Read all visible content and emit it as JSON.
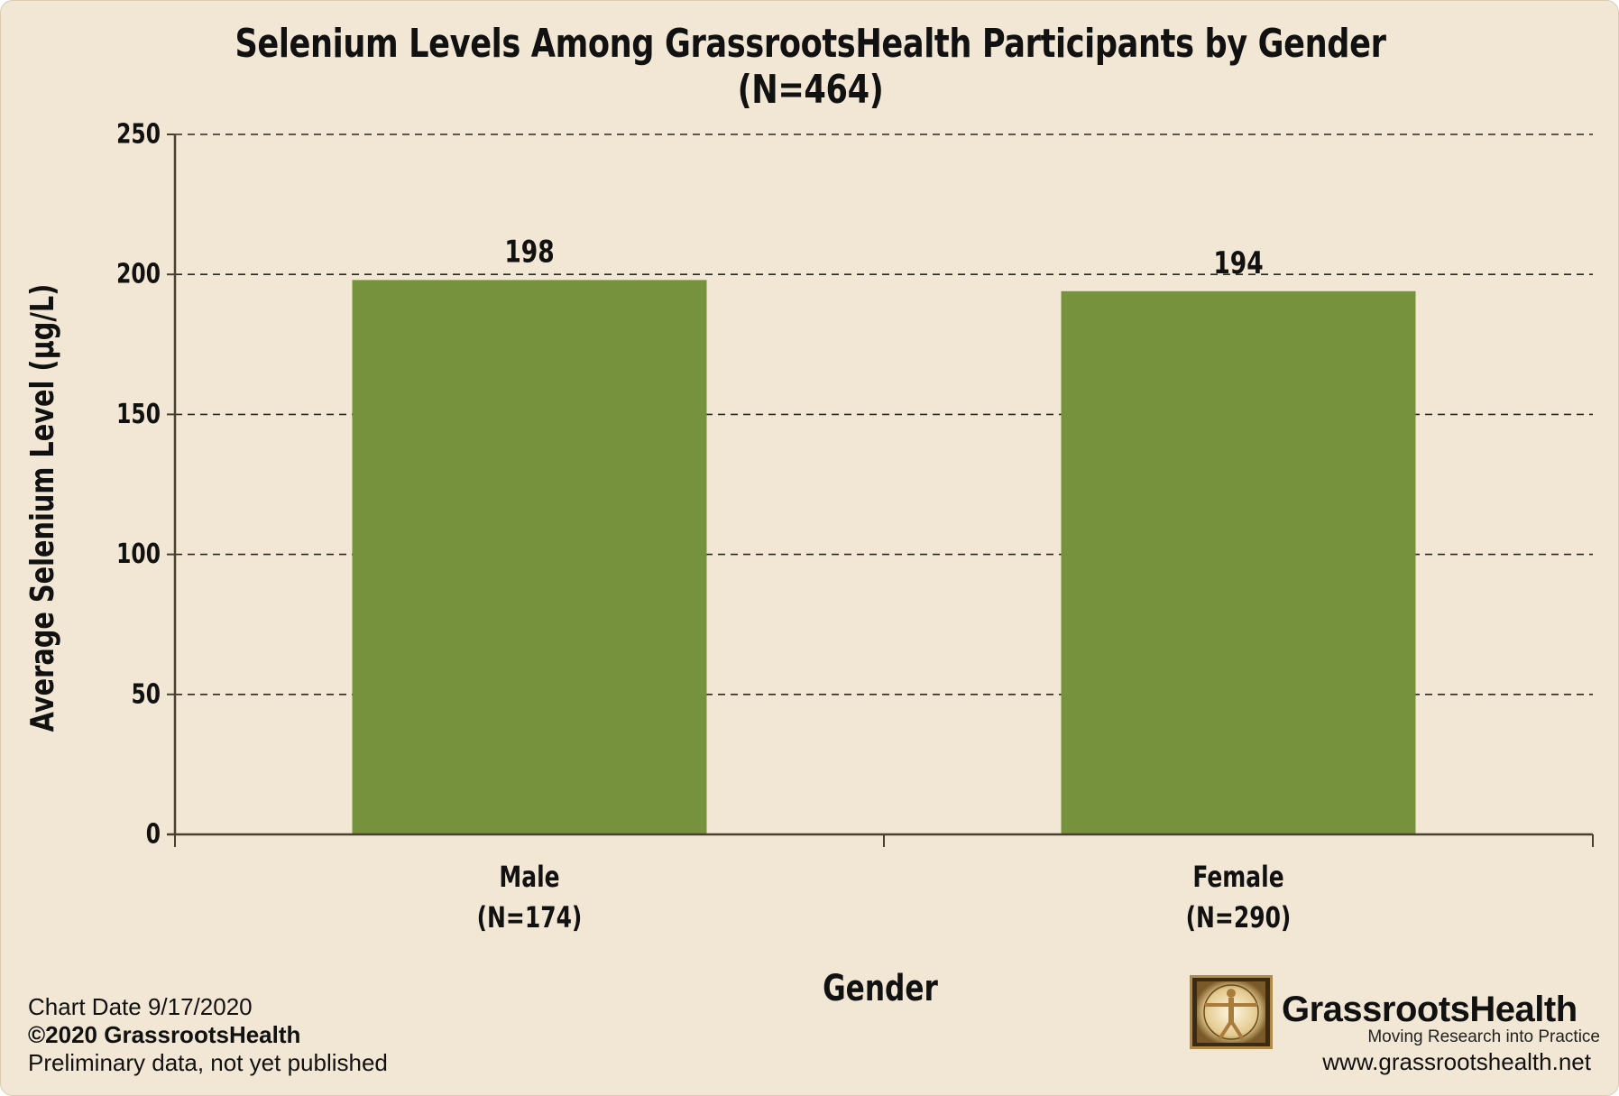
{
  "chart_data": {
    "type": "bar",
    "title": "Selenium Levels Among GrassrootsHealth Participants by Gender (N=464)",
    "xlabel": "Gender",
    "ylabel": "Average Selenium Level (µg/L)",
    "categories": [
      {
        "line1": "Male",
        "line2": "(N=174)"
      },
      {
        "line1": "Female",
        "line2": "(N=290)"
      }
    ],
    "values": [
      198,
      194
    ],
    "data_labels": [
      "198",
      "194"
    ],
    "ylim": [
      0,
      250
    ],
    "yticks": [
      0,
      50,
      100,
      150,
      200,
      250
    ],
    "grid": "horizontal-dashed",
    "bar_color": "#76923c"
  },
  "footer": {
    "chart_date": "Chart Date 9/17/2020",
    "copyright": "©2020 GrassrootsHealth",
    "note": "Preliminary data, not yet published"
  },
  "brand": {
    "name": "GrassrootsHealth",
    "tagline": "Moving Research into Practice",
    "website": "www.grassrootshealth.net"
  }
}
